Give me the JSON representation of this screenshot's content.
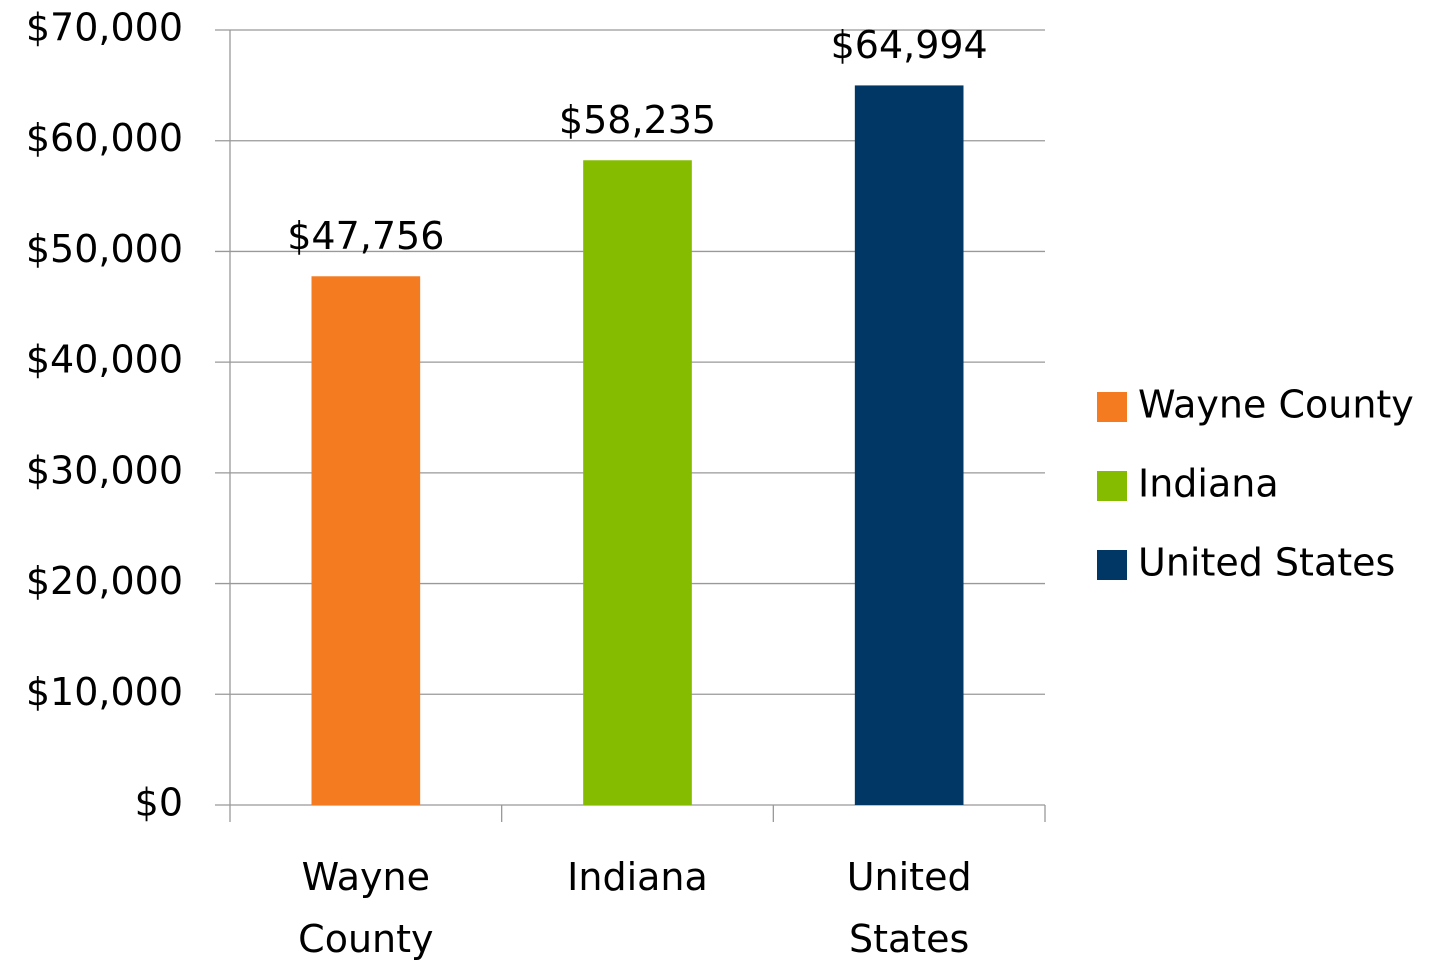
{
  "chart_data": {
    "type": "bar",
    "categories": [
      "Wayne County",
      "Indiana",
      "United States"
    ],
    "values": [
      47756,
      58235,
      64994
    ],
    "value_labels": [
      "$47,756",
      "$58,235",
      "$64,994"
    ],
    "colors": [
      "#f47b20",
      "#86bc00",
      "#003764"
    ],
    "ylim": [
      0,
      70000
    ],
    "yticks": [
      {
        "value": 0,
        "label": "$0"
      },
      {
        "value": 10000,
        "label": "$10,000"
      },
      {
        "value": 20000,
        "label": "$20,000"
      },
      {
        "value": 30000,
        "label": "$30,000"
      },
      {
        "value": 40000,
        "label": "$40,000"
      },
      {
        "value": 50000,
        "label": "$50,000"
      },
      {
        "value": 60000,
        "label": "$60,000"
      },
      {
        "value": 70000,
        "label": "$70,000"
      }
    ],
    "grid": true,
    "legend": "right"
  }
}
